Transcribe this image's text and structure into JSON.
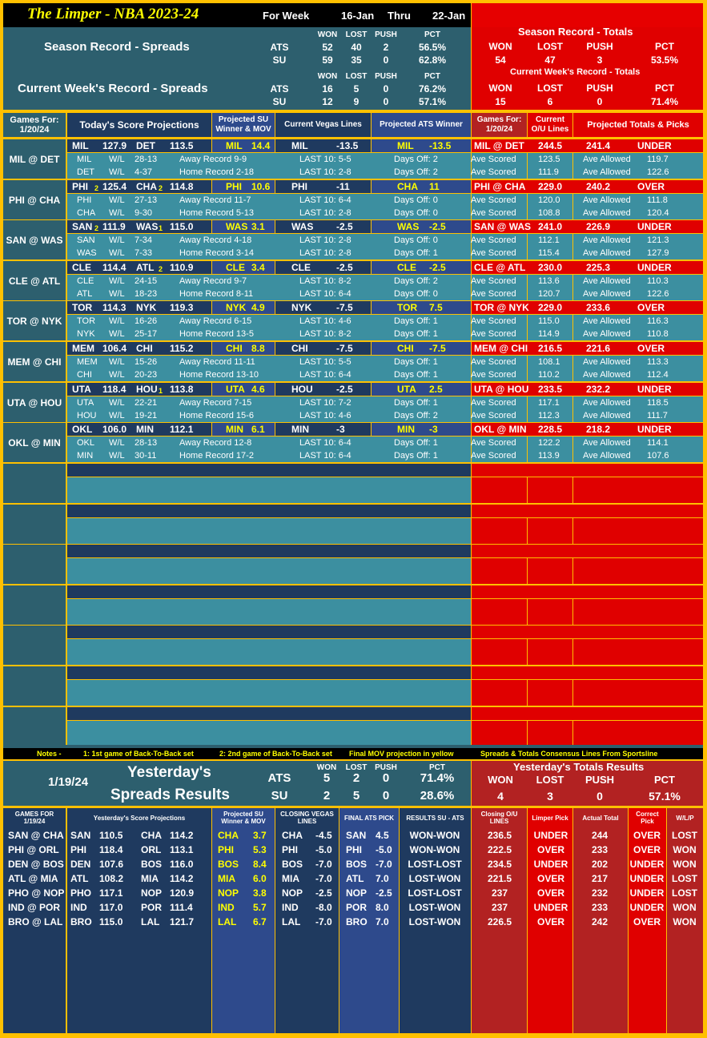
{
  "header": {
    "title": "The Limper - NBA 2023-24",
    "for_week": "For Week",
    "start": "16-Jan",
    "thru": "Thru",
    "end": "22-Jan"
  },
  "season_spreads": {
    "title": "Season Record - Spreads",
    "cols": [
      "WON",
      "LOST",
      "PUSH",
      "PCT"
    ],
    "ats": {
      "label": "ATS",
      "won": "52",
      "lost": "40",
      "push": "2",
      "pct": "56.5%"
    },
    "su": {
      "label": "SU",
      "won": "59",
      "lost": "35",
      "push": "0",
      "pct": "62.8%"
    }
  },
  "week_spreads": {
    "title": "Current Week's Record - Spreads",
    "cols": [
      "WON",
      "LOST",
      "PUSH",
      "PCT"
    ],
    "ats": {
      "label": "ATS",
      "won": "16",
      "lost": "5",
      "push": "0",
      "pct": "76.2%"
    },
    "su": {
      "label": "SU",
      "won": "12",
      "lost": "9",
      "push": "0",
      "pct": "57.1%"
    }
  },
  "season_totals": {
    "title": "Season Record - Totals",
    "cols": [
      "WON",
      "LOST",
      "PUSH",
      "PCT"
    ],
    "vals": [
      "54",
      "47",
      "3",
      "53.5%"
    ]
  },
  "week_totals": {
    "title": "Current Week's Record - Totals",
    "cols": [
      "WON",
      "LOST",
      "PUSH",
      "PCT"
    ],
    "vals": [
      "15",
      "6",
      "0",
      "71.4%"
    ]
  },
  "section_headers": {
    "games_for": "Games For:",
    "date": "1/20/24",
    "score_proj": "Today's Score Projections",
    "su_winner": "Projected SU Winner & MOV",
    "vegas": "Current Vegas Lines",
    "ats_winner": "Projected ATS Winner",
    "games_for_r": "Games For:",
    "date_r": "1/20/24",
    "current_ou": "Current O/U Lines",
    "totals_picks": "Projected Totals & Picks"
  },
  "games": [
    {
      "matchup": "MIL @ DET",
      "away": "MIL",
      "away_b2b": "",
      "away_score": "127.9",
      "home": "DET",
      "home_b2b": "",
      "home_score": "113.5",
      "su_team": "MIL",
      "su_mov": "14.4",
      "vegas_team": "MIL",
      "vegas_line": "-13.5",
      "ats_team": "MIL",
      "ats_line": "-13.5",
      "ou_game": "MIL @ DET",
      "ou_line": "244.5",
      "proj_total": "241.4",
      "pick": "UNDER",
      "rows": [
        {
          "team": "MIL",
          "wl": "W/L",
          "rec": "28-13",
          "ha": "Away Record 9-9",
          "last10": "LAST 10: 5-5",
          "days": "Days Off: 2",
          "ave_scored": "123.5",
          "ave_allowed": "119.7"
        },
        {
          "team": "DET",
          "wl": "W/L",
          "rec": "4-37",
          "ha": "Home Record 2-18",
          "last10": "LAST 10: 2-8",
          "days": "Days Off: 2",
          "ave_scored": "111.9",
          "ave_allowed": "122.6"
        }
      ]
    },
    {
      "matchup": "PHI @ CHA",
      "away": "PHI",
      "away_b2b": "2",
      "away_score": "125.4",
      "home": "CHA",
      "home_b2b": "2",
      "home_score": "114.8",
      "su_team": "PHI",
      "su_mov": "10.6",
      "vegas_team": "PHI",
      "vegas_line": "-11",
      "ats_team": "CHA",
      "ats_line": "11",
      "ou_game": "PHI @ CHA",
      "ou_line": "229.0",
      "proj_total": "240.2",
      "pick": "OVER",
      "rows": [
        {
          "team": "PHI",
          "wl": "W/L",
          "rec": "27-13",
          "ha": "Away Record 11-7",
          "last10": "LAST 10: 6-4",
          "days": "Days Off: 0",
          "ave_scored": "120.0",
          "ave_allowed": "111.8"
        },
        {
          "team": "CHA",
          "wl": "W/L",
          "rec": "9-30",
          "ha": "Home Record 5-13",
          "last10": "LAST 10: 2-8",
          "days": "Days Off: 0",
          "ave_scored": "108.8",
          "ave_allowed": "120.4"
        }
      ]
    },
    {
      "matchup": "SAN @ WAS",
      "away": "SAN",
      "away_b2b": "2",
      "away_score": "111.9",
      "home": "WAS",
      "home_b2b": "1",
      "home_score": "115.0",
      "su_team": "WAS",
      "su_mov": "3.1",
      "vegas_team": "WAS",
      "vegas_line": "-2.5",
      "ats_team": "WAS",
      "ats_line": "-2.5",
      "ou_game": "SAN @ WAS",
      "ou_line": "241.0",
      "proj_total": "226.9",
      "pick": "UNDER",
      "rows": [
        {
          "team": "SAN",
          "wl": "W/L",
          "rec": "7-34",
          "ha": "Away Record 4-18",
          "last10": "LAST 10: 2-8",
          "days": "Days Off: 0",
          "ave_scored": "112.1",
          "ave_allowed": "121.3"
        },
        {
          "team": "WAS",
          "wl": "W/L",
          "rec": "7-33",
          "ha": "Home Record 3-14",
          "last10": "LAST 10: 2-8",
          "days": "Days Off: 1",
          "ave_scored": "115.4",
          "ave_allowed": "127.9"
        }
      ]
    },
    {
      "matchup": "CLE @ ATL",
      "away": "CLE",
      "away_b2b": "",
      "away_score": "114.4",
      "home": "ATL",
      "home_b2b": "2",
      "home_score": "110.9",
      "su_team": "CLE",
      "su_mov": "3.4",
      "vegas_team": "CLE",
      "vegas_line": "-2.5",
      "ats_team": "CLE",
      "ats_line": "-2.5",
      "ou_game": "CLE @ ATL",
      "ou_line": "230.0",
      "proj_total": "225.3",
      "pick": "UNDER",
      "rows": [
        {
          "team": "CLE",
          "wl": "W/L",
          "rec": "24-15",
          "ha": "Away Record 9-7",
          "last10": "LAST 10: 8-2",
          "days": "Days Off: 2",
          "ave_scored": "113.6",
          "ave_allowed": "110.3"
        },
        {
          "team": "ATL",
          "wl": "W/L",
          "rec": "18-23",
          "ha": "Home Record 8-11",
          "last10": "LAST 10: 6-4",
          "days": "Days Off: 0",
          "ave_scored": "120.7",
          "ave_allowed": "122.6"
        }
      ]
    },
    {
      "matchup": "TOR @ NYK",
      "away": "TOR",
      "away_b2b": "",
      "away_score": "114.3",
      "home": "NYK",
      "home_b2b": "",
      "home_score": "119.3",
      "su_team": "NYK",
      "su_mov": "4.9",
      "vegas_team": "NYK",
      "vegas_line": "-7.5",
      "ats_team": "TOR",
      "ats_line": "7.5",
      "ou_game": "TOR @ NYK",
      "ou_line": "229.0",
      "proj_total": "233.6",
      "pick": "OVER",
      "rows": [
        {
          "team": "TOR",
          "wl": "W/L",
          "rec": "16-26",
          "ha": "Away Record 6-15",
          "last10": "LAST 10: 4-6",
          "days": "Days Off: 1",
          "ave_scored": "115.0",
          "ave_allowed": "116.3"
        },
        {
          "team": "NYK",
          "wl": "W/L",
          "rec": "25-17",
          "ha": "Home Record 13-5",
          "last10": "LAST 10: 8-2",
          "days": "Days Off: 1",
          "ave_scored": "114.9",
          "ave_allowed": "110.8"
        }
      ]
    },
    {
      "matchup": "MEM @ CHI",
      "away": "MEM",
      "away_b2b": "",
      "away_score": "106.4",
      "home": "CHI",
      "home_b2b": "",
      "home_score": "115.2",
      "su_team": "CHI",
      "su_mov": "8.8",
      "vegas_team": "CHI",
      "vegas_line": "-7.5",
      "ats_team": "CHI",
      "ats_line": "-7.5",
      "ou_game": "MEM @ CHI",
      "ou_line": "216.5",
      "proj_total": "221.6",
      "pick": "OVER",
      "rows": [
        {
          "team": "MEM",
          "wl": "W/L",
          "rec": "15-26",
          "ha": "Away Record 11-11",
          "last10": "LAST 10: 5-5",
          "days": "Days Off: 1",
          "ave_scored": "108.1",
          "ave_allowed": "113.3"
        },
        {
          "team": "CHI",
          "wl": "W/L",
          "rec": "20-23",
          "ha": "Home Record 13-10",
          "last10": "LAST 10: 6-4",
          "days": "Days Off: 1",
          "ave_scored": "110.2",
          "ave_allowed": "112.4"
        }
      ]
    },
    {
      "matchup": "UTA @ HOU",
      "away": "UTA",
      "away_b2b": "",
      "away_score": "118.4",
      "home": "HOU",
      "home_b2b": "1",
      "home_score": "113.8",
      "su_team": "UTA",
      "su_mov": "4.6",
      "vegas_team": "HOU",
      "vegas_line": "-2.5",
      "ats_team": "UTA",
      "ats_line": "2.5",
      "ou_game": "UTA @ HOU",
      "ou_line": "233.5",
      "proj_total": "232.2",
      "pick": "UNDER",
      "rows": [
        {
          "team": "UTA",
          "wl": "W/L",
          "rec": "22-21",
          "ha": "Away Record 7-15",
          "last10": "LAST 10: 7-2",
          "days": "Days Off: 1",
          "ave_scored": "117.1",
          "ave_allowed": "118.5"
        },
        {
          "team": "HOU",
          "wl": "W/L",
          "rec": "19-21",
          "ha": "Home Record 15-6",
          "last10": "LAST 10: 4-6",
          "days": "Days Off: 2",
          "ave_scored": "112.3",
          "ave_allowed": "111.7"
        }
      ]
    },
    {
      "matchup": "OKL @ MIN",
      "away": "OKL",
      "away_b2b": "",
      "away_score": "106.0",
      "home": "MIN",
      "home_b2b": "",
      "home_score": "112.1",
      "su_team": "MIN",
      "su_mov": "6.1",
      "vegas_team": "MIN",
      "vegas_line": "-3",
      "ats_team": "MIN",
      "ats_line": "-3",
      "ou_game": "OKL @ MIN",
      "ou_line": "228.5",
      "proj_total": "218.2",
      "pick": "UNDER",
      "rows": [
        {
          "team": "OKL",
          "wl": "W/L",
          "rec": "28-13",
          "ha": "Away Record 12-8",
          "last10": "LAST 10: 6-4",
          "days": "Days Off: 1",
          "ave_scored": "122.2",
          "ave_allowed": "114.1"
        },
        {
          "team": "MIN",
          "wl": "W/L",
          "rec": "30-11",
          "ha": "Home Record 17-2",
          "last10": "LAST 10: 6-4",
          "days": "Days Off: 1",
          "ave_scored": "113.9",
          "ave_allowed": "107.6"
        }
      ]
    }
  ],
  "labels": {
    "ave_scored": "Ave Scored",
    "ave_allowed": "Ave Allowed"
  },
  "notes": {
    "label": "Notes -",
    "n1": "1: 1st game of Back-To-Back set",
    "n2": "2: 2nd game of Back-To-Back set",
    "n3": "Final MOV projection in yellow",
    "n4": "Spreads & Totals Consensus Lines From Sportsline"
  },
  "yesterday": {
    "date": "1/19/24",
    "title1": "Yesterday's",
    "title2": "Spreads Results",
    "cols": [
      "WON",
      "LOST",
      "PUSH",
      "PCT"
    ],
    "ats": {
      "label": "ATS",
      "won": "5",
      "lost": "2",
      "push": "0",
      "pct": "71.4%"
    },
    "su": {
      "label": "SU",
      "won": "2",
      "lost": "5",
      "push": "0",
      "pct": "28.6%"
    },
    "totals_title": "Yesterday's Totals Results",
    "totals_cols": [
      "WON",
      "LOST",
      "PUSH",
      "PCT"
    ],
    "totals_vals": [
      "4",
      "3",
      "0",
      "57.1%"
    ]
  },
  "yheaders": {
    "games_for": "GAMES FOR",
    "date": "1/19/24",
    "score_proj": "Yesterday's Score Projections",
    "su_winner": "Projected SU Winner & MOV",
    "closing": "CLOSING VEGAS LINES",
    "final_ats": "FINAL ATS PICK",
    "results": "RESULTS SU - ATS",
    "closing_ou": "Closing O/U LINES",
    "limper_pick": "Limper Pick",
    "actual_total": "Actual Total",
    "correct_pick": "Correct Pick",
    "wlp": "W/L/P"
  },
  "yresults": [
    {
      "matchup": "SAN @ CHA",
      "away": "SAN",
      "away_score": "110.5",
      "home": "CHA",
      "home_score": "114.2",
      "su_team": "CHA",
      "su_mov": "3.7",
      "close_team": "CHA",
      "close_line": "-4.5",
      "ats_team": "SAN",
      "ats_line": "4.5",
      "result": "WON-WON",
      "ou": "236.5",
      "pick": "UNDER",
      "actual": "244",
      "correct": "OVER",
      "wlp": "LOST"
    },
    {
      "matchup": "PHI @ ORL",
      "away": "PHI",
      "away_score": "118.4",
      "home": "ORL",
      "home_score": "113.1",
      "su_team": "PHI",
      "su_mov": "5.3",
      "close_team": "PHI",
      "close_line": "-5.0",
      "ats_team": "PHI",
      "ats_line": "-5.0",
      "result": "WON-WON",
      "ou": "222.5",
      "pick": "OVER",
      "actual": "233",
      "correct": "OVER",
      "wlp": "WON"
    },
    {
      "matchup": "DEN @ BOS",
      "away": "DEN",
      "away_score": "107.6",
      "home": "BOS",
      "home_score": "116.0",
      "su_team": "BOS",
      "su_mov": "8.4",
      "close_team": "BOS",
      "close_line": "-7.0",
      "ats_team": "BOS",
      "ats_line": "-7.0",
      "result": "LOST-LOST",
      "ou": "234.5",
      "pick": "UNDER",
      "actual": "202",
      "correct": "UNDER",
      "wlp": "WON"
    },
    {
      "matchup": "ATL @ MIA",
      "away": "ATL",
      "away_score": "108.2",
      "home": "MIA",
      "home_score": "114.2",
      "su_team": "MIA",
      "su_mov": "6.0",
      "close_team": "MIA",
      "close_line": "-7.0",
      "ats_team": "ATL",
      "ats_line": "7.0",
      "result": "LOST-WON",
      "ou": "221.5",
      "pick": "OVER",
      "actual": "217",
      "correct": "UNDER",
      "wlp": "LOST"
    },
    {
      "matchup": "PHO @ NOP",
      "away": "PHO",
      "away_score": "117.1",
      "home": "NOP",
      "home_score": "120.9",
      "su_team": "NOP",
      "su_mov": "3.8",
      "close_team": "NOP",
      "close_line": "-2.5",
      "ats_team": "NOP",
      "ats_line": "-2.5",
      "result": "LOST-LOST",
      "ou": "237",
      "pick": "OVER",
      "actual": "232",
      "correct": "UNDER",
      "wlp": "LOST"
    },
    {
      "matchup": "IND @ POR",
      "away": "IND",
      "away_score": "117.0",
      "home": "POR",
      "home_score": "111.4",
      "su_team": "IND",
      "su_mov": "5.7",
      "close_team": "IND",
      "close_line": "-8.0",
      "ats_team": "POR",
      "ats_line": "8.0",
      "result": "LOST-WON",
      "ou": "237",
      "pick": "UNDER",
      "actual": "233",
      "correct": "UNDER",
      "wlp": "WON"
    },
    {
      "matchup": "BRO @ LAL",
      "away": "BRO",
      "away_score": "115.0",
      "home": "LAL",
      "home_score": "121.7",
      "su_team": "LAL",
      "su_mov": "6.7",
      "close_team": "LAL",
      "close_line": "-7.0",
      "ats_team": "BRO",
      "ats_line": "7.0",
      "result": "LOST-WON",
      "ou": "226.5",
      "pick": "OVER",
      "actual": "242",
      "correct": "OVER",
      "wlp": "WON"
    }
  ]
}
